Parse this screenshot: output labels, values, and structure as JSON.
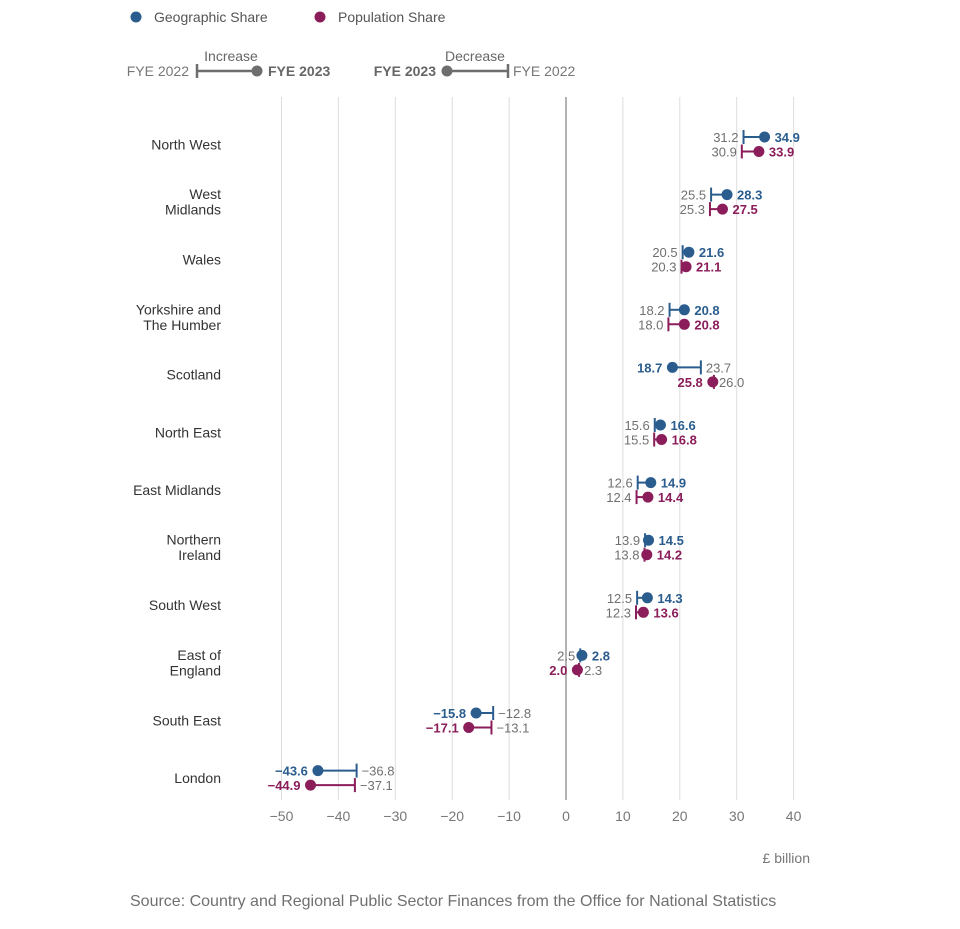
{
  "legend": {
    "geographic": {
      "label": "Geographic Share",
      "color": "#2a5d8e"
    },
    "population": {
      "label": "Population Share",
      "color": "#8b1e5a"
    }
  },
  "key": {
    "increase_label": "Increase",
    "decrease_label": "Decrease",
    "from_label": "FYE 2022",
    "to_label": "FYE 2023"
  },
  "source": "Source: Country and Regional Public Sector Finances from the Office for National Statistics",
  "chart_data": {
    "type": "dumbbell",
    "title": "",
    "xlabel": "£ billion",
    "xlim": [
      -55,
      45
    ],
    "xticks": [
      -50,
      -40,
      -30,
      -20,
      -10,
      0,
      10,
      20,
      30,
      40
    ],
    "xtick_labels": [
      "−50",
      "−40",
      "−30",
      "−20",
      "−10",
      "0",
      "10",
      "20",
      "30",
      "40"
    ],
    "grid": true,
    "categories": [
      {
        "name": "North West",
        "lines": [
          "North West"
        ]
      },
      {
        "name": "West Midlands",
        "lines": [
          "West",
          "Midlands"
        ]
      },
      {
        "name": "Wales",
        "lines": [
          "Wales"
        ]
      },
      {
        "name": "Yorkshire and The Humber",
        "lines": [
          "Yorkshire and",
          "The Humber"
        ]
      },
      {
        "name": "Scotland",
        "lines": [
          "Scotland"
        ]
      },
      {
        "name": "North East",
        "lines": [
          "North East"
        ]
      },
      {
        "name": "East Midlands",
        "lines": [
          "East Midlands"
        ]
      },
      {
        "name": "Northern Ireland",
        "lines": [
          "Northern",
          "Ireland"
        ]
      },
      {
        "name": "South West",
        "lines": [
          "South West"
        ]
      },
      {
        "name": "East of England",
        "lines": [
          "East of",
          "England"
        ]
      },
      {
        "name": "South East",
        "lines": [
          "South East"
        ]
      },
      {
        "name": "London",
        "lines": [
          "London"
        ]
      }
    ],
    "series": [
      {
        "name": "Geographic Share",
        "fye2022": [
          31.2,
          25.5,
          20.5,
          18.2,
          23.7,
          15.6,
          12.6,
          13.9,
          12.5,
          2.5,
          -12.8,
          -36.8
        ],
        "fye2023": [
          34.9,
          28.3,
          21.6,
          20.8,
          18.7,
          16.6,
          14.9,
          14.5,
          14.3,
          2.8,
          -15.8,
          -43.6
        ],
        "fye2022_labels": [
          "31.2",
          "25.5",
          "20.5",
          "18.2",
          "23.7",
          "15.6",
          "12.6",
          "13.9",
          "12.5",
          "2.5",
          "−12.8",
          "−36.8"
        ],
        "fye2023_labels": [
          "34.9",
          "28.3",
          "21.6",
          "20.8",
          "18.7",
          "16.6",
          "14.9",
          "14.5",
          "14.3",
          "2.8",
          "−15.8",
          "−43.6"
        ]
      },
      {
        "name": "Population Share",
        "fye2022": [
          30.9,
          25.3,
          20.3,
          18.0,
          26.0,
          15.5,
          12.4,
          13.8,
          12.3,
          2.3,
          -13.1,
          -37.1
        ],
        "fye2023": [
          33.9,
          27.5,
          21.1,
          20.8,
          25.8,
          16.8,
          14.4,
          14.2,
          13.6,
          2.0,
          -17.1,
          -44.9
        ],
        "fye2022_labels": [
          "30.9",
          "25.3",
          "20.3",
          "18.0",
          "26.0",
          "15.5",
          "12.4",
          "13.8",
          "12.3",
          "2.3",
          "−13.1",
          "−37.1"
        ],
        "fye2023_labels": [
          "33.9",
          "27.5",
          "21.1",
          "20.8",
          "25.8",
          "16.8",
          "14.4",
          "14.2",
          "13.6",
          "2.0",
          "−17.1",
          "−44.9"
        ]
      }
    ]
  },
  "colors": {
    "grid": "#dddddd",
    "zero_line": "#999999",
    "key_grey": "#6e6e6e",
    "label_text": "#333333",
    "muted_text": "#707070"
  }
}
